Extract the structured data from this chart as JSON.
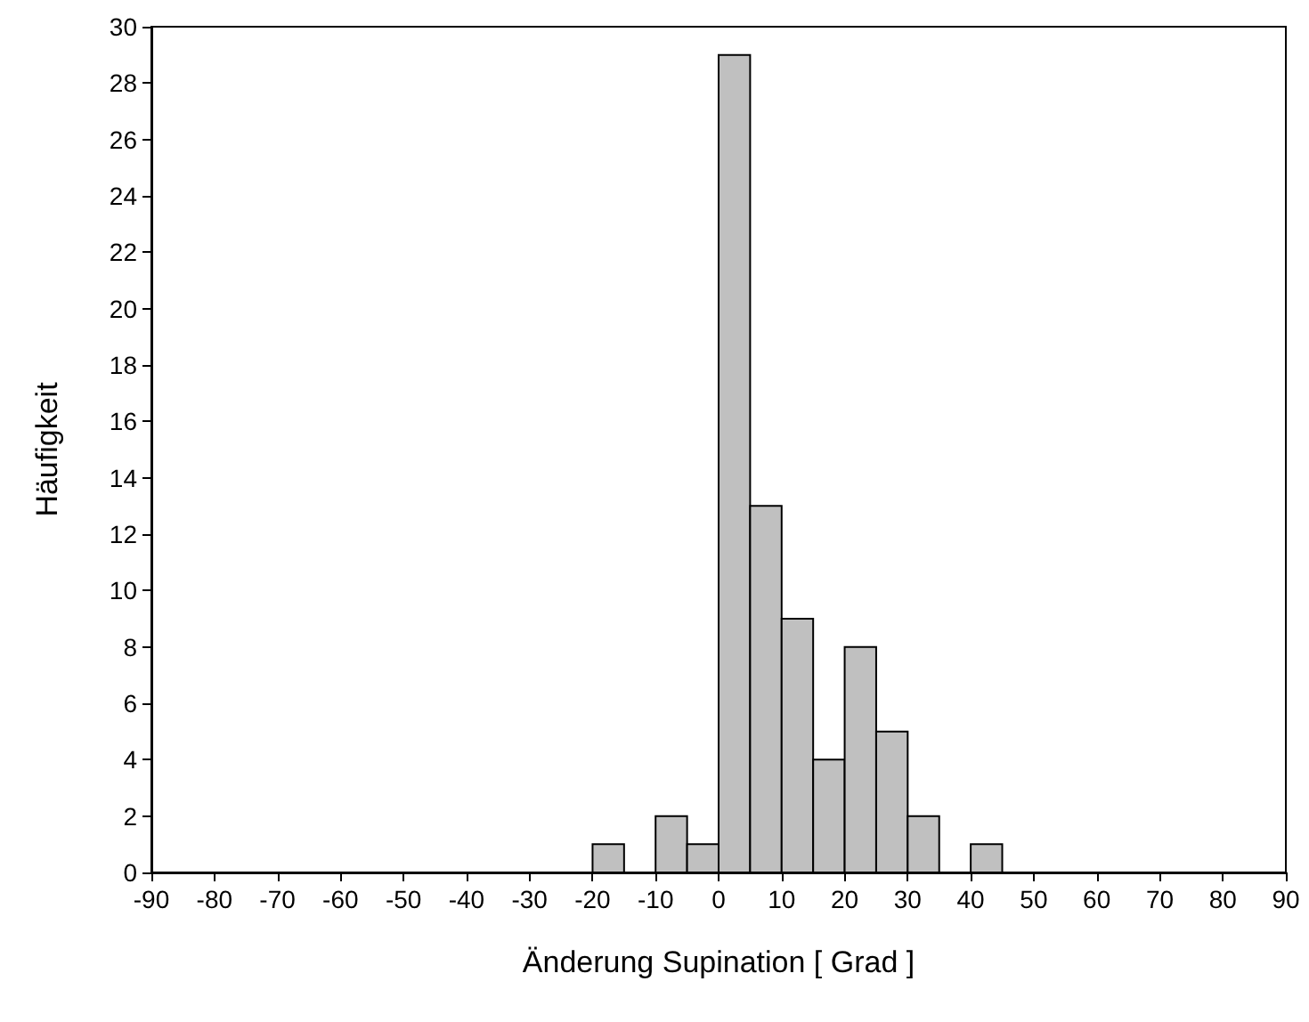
{
  "chart_data": {
    "type": "histogram",
    "xlabel": "Änderung Supination [ Grad ]",
    "ylabel": "Häufigkeit",
    "bins": [
      -90,
      -85,
      -80,
      -75,
      -70,
      -65,
      -60,
      -55,
      -50,
      -45,
      -40,
      -35,
      -30,
      -25,
      -20,
      -15,
      -10,
      -5,
      0,
      5,
      10,
      15,
      20,
      25,
      30,
      35,
      40,
      45,
      50,
      55,
      60,
      65,
      70,
      75,
      80,
      85,
      90
    ],
    "values": [
      0,
      0,
      0,
      0,
      0,
      0,
      0,
      0,
      0,
      0,
      0,
      0,
      0,
      0,
      1,
      0,
      2,
      1,
      29,
      13,
      9,
      4,
      8,
      5,
      2,
      0,
      1,
      0,
      0,
      0,
      0,
      0,
      0,
      0,
      0,
      0
    ],
    "color": "#c0c0c0",
    "xlim": [
      -90,
      90
    ],
    "xticks": [
      -90,
      -80,
      -70,
      -60,
      -50,
      -40,
      -30,
      -20,
      -10,
      0,
      10,
      20,
      30,
      40,
      50,
      60,
      70,
      80,
      90
    ],
    "ylim": [
      0,
      30
    ],
    "yticks": [
      0,
      2,
      4,
      6,
      8,
      10,
      12,
      14,
      16,
      18,
      20,
      22,
      24,
      26,
      28,
      30
    ],
    "grid": false
  }
}
